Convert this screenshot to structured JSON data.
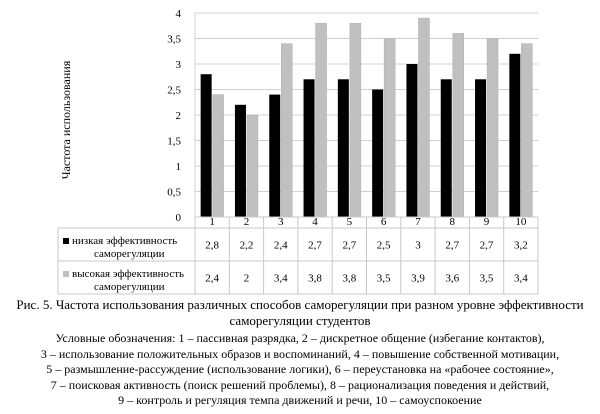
{
  "chart_data": {
    "type": "bar",
    "ylabel": "Частота использования",
    "ylim": [
      0,
      4
    ],
    "yticks": [
      "0",
      "0,5",
      "1",
      "1,5",
      "2",
      "2,5",
      "3",
      "3,5",
      "4"
    ],
    "grid": true,
    "legend_placement": "left, inside data table",
    "categories": [
      "1",
      "2",
      "3",
      "4",
      "5",
      "6",
      "7",
      "8",
      "9",
      "10"
    ],
    "series": [
      {
        "name": "низкая эффективность саморегуляции",
        "color": "#000000",
        "values": [
          2.8,
          2.2,
          2.4,
          2.7,
          2.7,
          2.5,
          3.0,
          2.7,
          2.7,
          3.2
        ],
        "labels": [
          "2,8",
          "2,2",
          "2,4",
          "2,7",
          "2,7",
          "2,5",
          "3",
          "2,7",
          "2,7",
          "3,2"
        ]
      },
      {
        "name": "высокая эффективность саморегуляции",
        "color": "#c0c0c0",
        "values": [
          2.4,
          2.0,
          3.4,
          3.8,
          3.8,
          3.5,
          3.9,
          3.6,
          3.5,
          3.4
        ],
        "labels": [
          "2,4",
          "2",
          "3,4",
          "3,8",
          "3,8",
          "3,5",
          "3,9",
          "3,6",
          "3,5",
          "3,4"
        ]
      }
    ]
  },
  "caption": {
    "line1": "Рис. 5. Частота использования различных способов саморегуляции при разном уровне эффективности",
    "line2": "саморегуляции студентов"
  },
  "legend_text": [
    "Условные обозначения: 1 – пассивная разрядка, 2 – дискретное общение (избегание контактов),",
    "3 – использование положительных образов и воспоминаний, 4 – повышение собственной мотивации,",
    "5 – размышление-рассуждение (использование логики), 6 – переустановка на «рабочее состояние»,",
    "7 – поисковая активность (поиск решений проблемы), 8 – рационализация поведения и действий,",
    "9 – контроль и регуляция темпа движений и речи, 10 – самоуспокоение"
  ]
}
